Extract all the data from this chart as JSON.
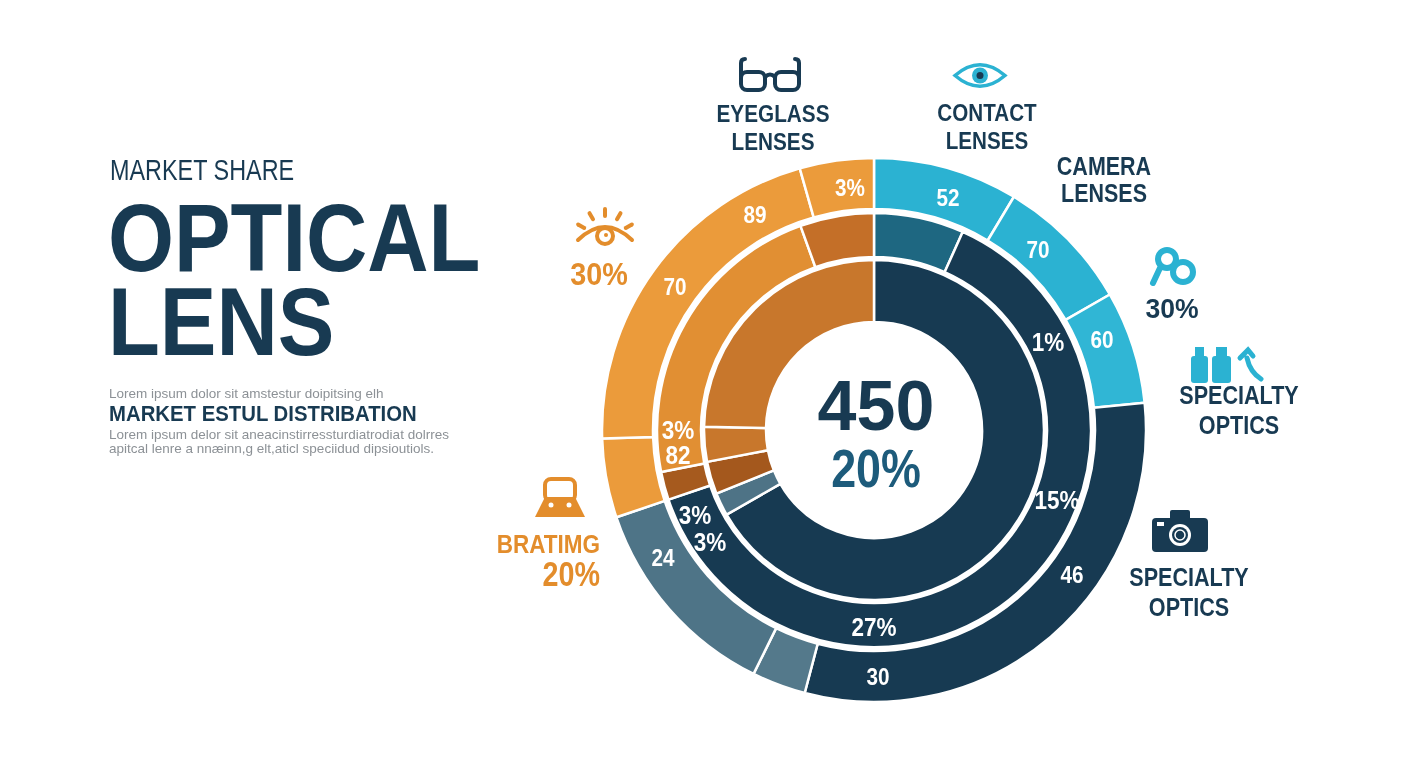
{
  "chart_data": {
    "type": "donut",
    "title": "OPTICAL LENS",
    "subtitle": "MARKET SHARE",
    "series": [
      {
        "values": [
          8.6,
          8.1,
          6.7,
          30.7,
          3.2,
          12.5,
          4.7,
          21.1,
          4.4
        ],
        "colors": [
          "#2bb2d2",
          "#2bb2d2",
          "#30b6d5",
          "#173a52",
          "#54798b",
          "#4e7487",
          "#eb9b3b",
          "#eb9b3b",
          "#eb9b3b"
        ]
      },
      {
        "values": [
          6.7,
          63.1,
          2.1,
          22.6,
          5.5
        ],
        "colors": [
          "#1e6781",
          "#173a52",
          "#a65a1e",
          "#e18f33",
          "#c46f28"
        ]
      },
      {
        "values": [
          66.7,
          2.2,
          3.1,
          3.3,
          24.7
        ],
        "colors": [
          "#173a52",
          "#4e7386",
          "#a4581d",
          "#c8772c",
          "#c8772c"
        ]
      }
    ],
    "annotations": [
      "Lorem ipsum dolor sit amstestur doipitsing elh",
      "MARKET ESTUL DISTRIBATION",
      "Lorem ipsum delor sit aneacinstirressturdiatrodiat dolrres",
      "apitcal lenre a nnæinn,g elt,aticl speciidud dipsioutiols.",
      "EYEGLASS LENSES",
      "CONTACT LENSES",
      "CAMERA LENSES",
      "30%",
      "SPECIALTY OPTICS",
      "SPECIALTY OPTICS",
      "BRATIMG",
      "20%",
      "30%",
      "450",
      "20%",
      "52",
      "70",
      "60",
      "46",
      "30",
      "24",
      "70",
      "89",
      "3%",
      "1%",
      "15%",
      "27%",
      "3%",
      "3%",
      "3%",
      "82"
    ]
  }
}
